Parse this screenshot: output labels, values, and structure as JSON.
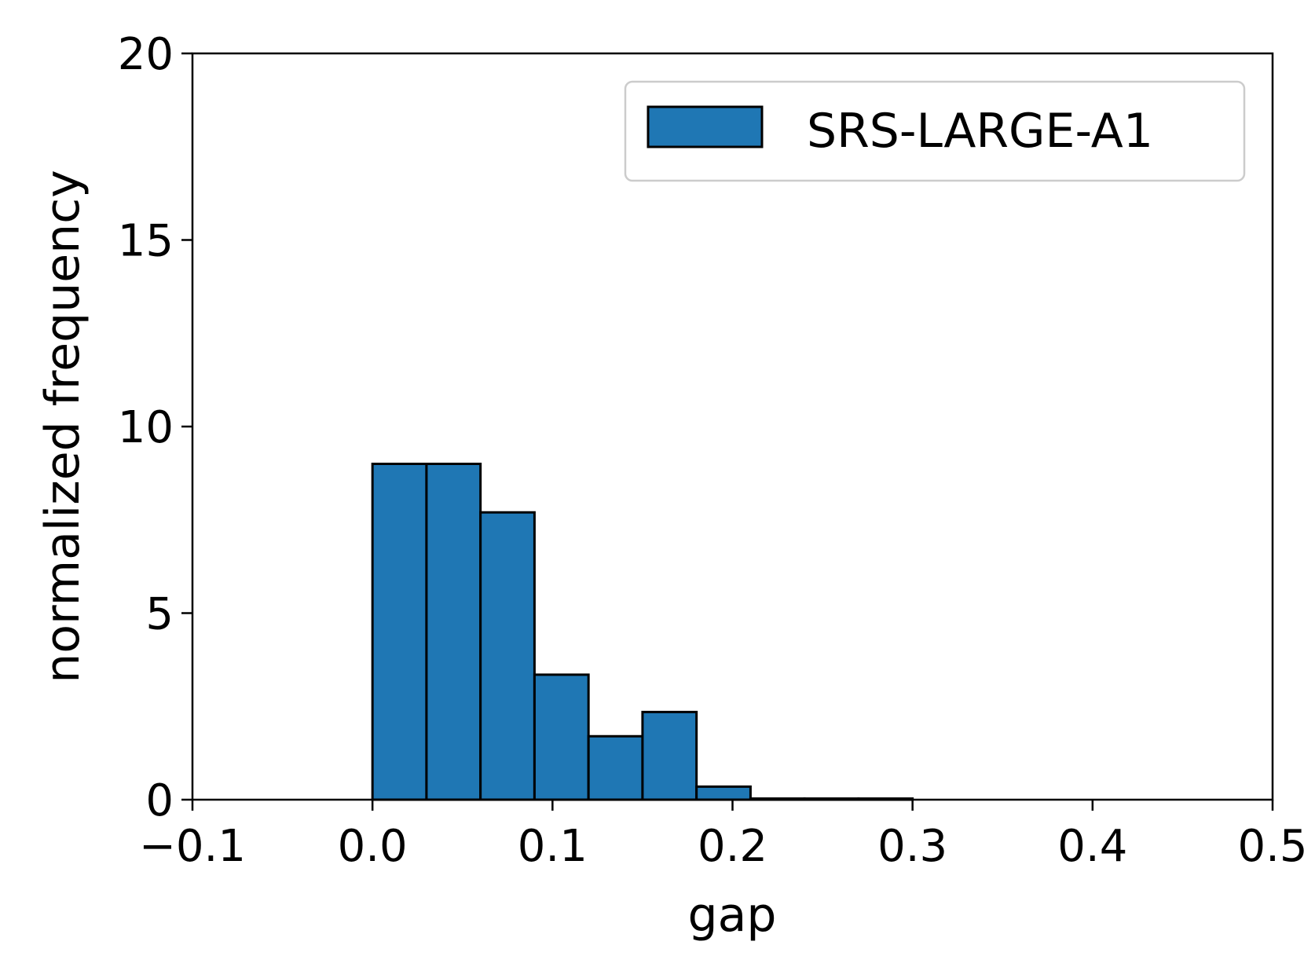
{
  "chart_data": {
    "type": "bar",
    "xlabel": "gap",
    "ylabel": "normalized frequency",
    "xlim": [
      -0.1,
      0.5
    ],
    "ylim": [
      0,
      20
    ],
    "xticks": [
      "−0.1",
      "0.0",
      "0.1",
      "0.2",
      "0.3",
      "0.4",
      "0.5"
    ],
    "yticks": [
      "0",
      "5",
      "10",
      "15",
      "20"
    ],
    "grid": false,
    "legend_position": "top-right",
    "bin_edges": [
      0.0,
      0.03,
      0.06,
      0.09,
      0.12,
      0.15,
      0.18,
      0.21,
      0.24,
      0.27,
      0.3
    ],
    "series": [
      {
        "name": "SRS-LARGE-A1",
        "color": "#1f77b4",
        "values": [
          9.0,
          9.0,
          7.7,
          3.35,
          1.7,
          2.35,
          0.35,
          0.03,
          0.03,
          0.03
        ]
      }
    ]
  }
}
